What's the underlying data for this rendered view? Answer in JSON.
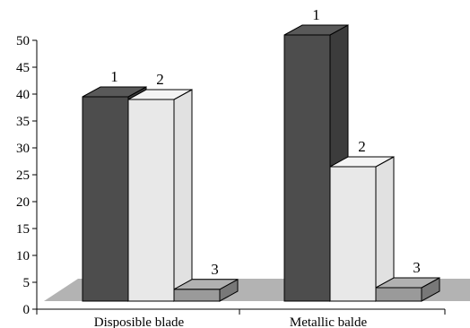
{
  "chart_data": {
    "type": "bar",
    "title": "",
    "xlabel": "",
    "ylabel": "",
    "categories": [
      "Disposible blade",
      "Metallic balde"
    ],
    "series": [
      {
        "label": "1",
        "values": [
          38,
          49.5
        ],
        "color": "#4d4d4d"
      },
      {
        "label": "2",
        "values": [
          37.5,
          25
        ],
        "color": "#e8e8e8"
      },
      {
        "label": "3",
        "values": [
          2.2,
          2.5
        ],
        "color": "#9a9a9a"
      }
    ],
    "ylim": [
      0,
      50
    ],
    "yticks": [
      0,
      5,
      10,
      15,
      20,
      25,
      30,
      35,
      40,
      45,
      50
    ],
    "floor_color": "#b3b3b3",
    "grid": false,
    "legend": "none"
  }
}
